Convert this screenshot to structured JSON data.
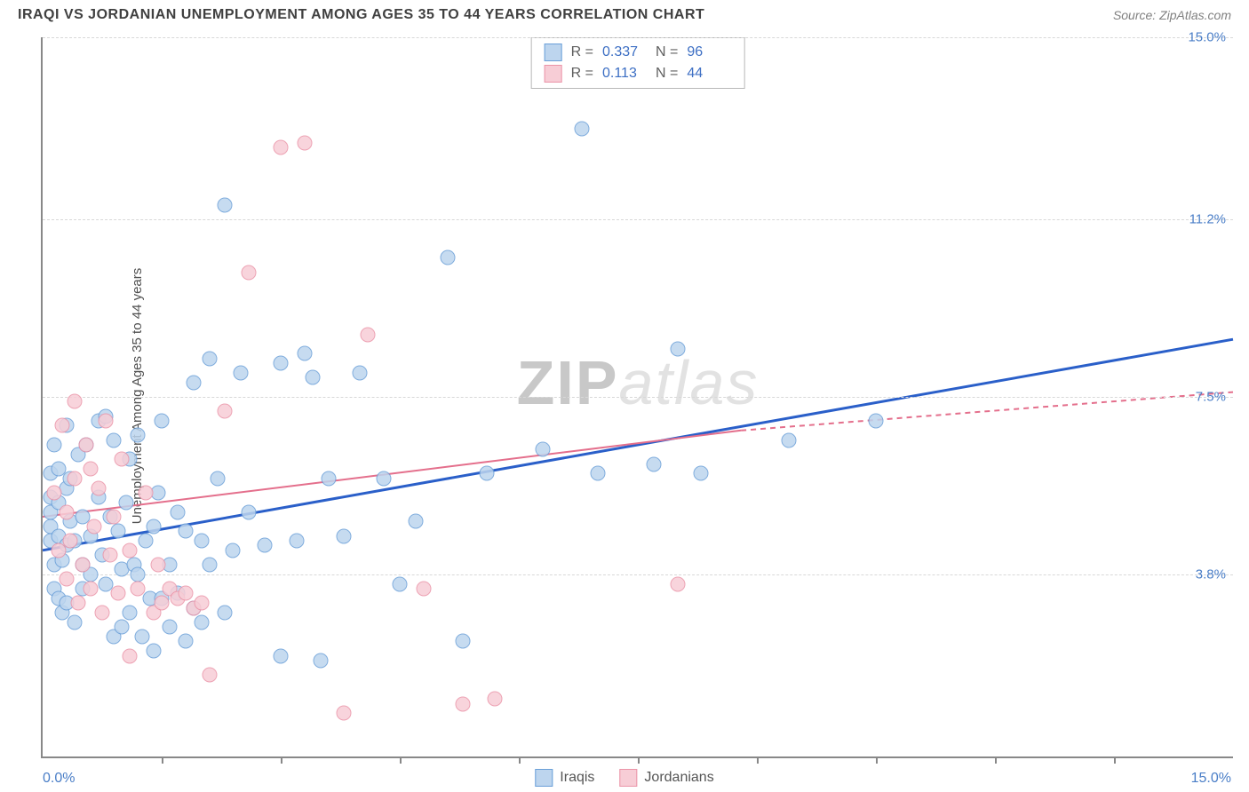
{
  "header": {
    "title": "IRAQI VS JORDANIAN UNEMPLOYMENT AMONG AGES 35 TO 44 YEARS CORRELATION CHART",
    "source": "Source: ZipAtlas.com"
  },
  "chart": {
    "type": "scatter",
    "ylabel": "Unemployment Among Ages 35 to 44 years",
    "xlim": [
      0,
      15
    ],
    "ylim": [
      0,
      15
    ],
    "xtick_positions": [
      0.1,
      0.2,
      0.3,
      0.4,
      0.5,
      0.6,
      0.7,
      0.8,
      0.9
    ],
    "x_axis_start_label": "0.0%",
    "x_axis_end_label": "15.0%",
    "y_gridlines": [
      {
        "value": 3.8,
        "label": "3.8%"
      },
      {
        "value": 7.5,
        "label": "7.5%"
      },
      {
        "value": 11.2,
        "label": "11.2%"
      },
      {
        "value": 15.0,
        "label": "15.0%"
      }
    ],
    "background_color": "#ffffff",
    "grid_color": "#d8d8d8",
    "axis_color": "#888888",
    "tick_label_color": "#4a7ec7",
    "point_radius": 8.5,
    "series": [
      {
        "name": "Iraqis",
        "fill": "#bdd5ee",
        "stroke": "#6a9fd8",
        "trend": {
          "color": "#2a5fc9",
          "width": 3,
          "x0": 0,
          "y0": 4.3,
          "x1": 15,
          "y1": 8.7
        },
        "points": [
          [
            0.1,
            5.1
          ],
          [
            0.1,
            5.4
          ],
          [
            0.1,
            4.8
          ],
          [
            0.1,
            5.9
          ],
          [
            0.1,
            4.5
          ],
          [
            0.15,
            4.0
          ],
          [
            0.15,
            3.5
          ],
          [
            0.15,
            6.5
          ],
          [
            0.2,
            5.3
          ],
          [
            0.2,
            4.6
          ],
          [
            0.2,
            3.3
          ],
          [
            0.2,
            6.0
          ],
          [
            0.25,
            4.1
          ],
          [
            0.25,
            3.0
          ],
          [
            0.3,
            5.6
          ],
          [
            0.3,
            6.9
          ],
          [
            0.3,
            4.4
          ],
          [
            0.3,
            3.2
          ],
          [
            0.35,
            4.9
          ],
          [
            0.35,
            5.8
          ],
          [
            0.4,
            2.8
          ],
          [
            0.4,
            4.5
          ],
          [
            0.45,
            6.3
          ],
          [
            0.5,
            5.0
          ],
          [
            0.5,
            4.0
          ],
          [
            0.5,
            3.5
          ],
          [
            0.55,
            6.5
          ],
          [
            0.6,
            3.8
          ],
          [
            0.6,
            4.6
          ],
          [
            0.7,
            7.0
          ],
          [
            0.7,
            5.4
          ],
          [
            0.75,
            4.2
          ],
          [
            0.8,
            7.1
          ],
          [
            0.8,
            3.6
          ],
          [
            0.85,
            5.0
          ],
          [
            0.9,
            2.5
          ],
          [
            0.9,
            6.6
          ],
          [
            0.95,
            4.7
          ],
          [
            1.0,
            3.9
          ],
          [
            1.0,
            2.7
          ],
          [
            1.05,
            5.3
          ],
          [
            1.1,
            6.2
          ],
          [
            1.1,
            3.0
          ],
          [
            1.15,
            4.0
          ],
          [
            1.2,
            3.8
          ],
          [
            1.2,
            6.7
          ],
          [
            1.25,
            2.5
          ],
          [
            1.3,
            4.5
          ],
          [
            1.35,
            3.3
          ],
          [
            1.4,
            4.8
          ],
          [
            1.4,
            2.2
          ],
          [
            1.45,
            5.5
          ],
          [
            1.5,
            3.3
          ],
          [
            1.5,
            7.0
          ],
          [
            1.6,
            4.0
          ],
          [
            1.6,
            2.7
          ],
          [
            1.7,
            5.1
          ],
          [
            1.7,
            3.4
          ],
          [
            1.8,
            4.7
          ],
          [
            1.8,
            2.4
          ],
          [
            1.9,
            3.1
          ],
          [
            1.9,
            7.8
          ],
          [
            2.0,
            4.5
          ],
          [
            2.0,
            2.8
          ],
          [
            2.1,
            8.3
          ],
          [
            2.1,
            4.0
          ],
          [
            2.2,
            5.8
          ],
          [
            2.3,
            3.0
          ],
          [
            2.3,
            11.5
          ],
          [
            2.4,
            4.3
          ],
          [
            2.5,
            8.0
          ],
          [
            2.6,
            5.1
          ],
          [
            2.8,
            4.4
          ],
          [
            3.0,
            2.1
          ],
          [
            3.0,
            8.2
          ],
          [
            3.2,
            4.5
          ],
          [
            3.3,
            8.4
          ],
          [
            3.4,
            7.9
          ],
          [
            3.5,
            2.0
          ],
          [
            3.6,
            5.8
          ],
          [
            3.8,
            4.6
          ],
          [
            4.0,
            8.0
          ],
          [
            4.3,
            5.8
          ],
          [
            4.5,
            3.6
          ],
          [
            4.7,
            4.9
          ],
          [
            5.1,
            10.4
          ],
          [
            5.3,
            2.4
          ],
          [
            5.6,
            5.9
          ],
          [
            6.3,
            6.4
          ],
          [
            6.8,
            13.1
          ],
          [
            7.0,
            5.9
          ],
          [
            7.7,
            6.1
          ],
          [
            8.0,
            8.5
          ],
          [
            8.3,
            5.9
          ],
          [
            9.4,
            6.6
          ],
          [
            10.5,
            7.0
          ]
        ]
      },
      {
        "name": "Jordanians",
        "fill": "#f7cdd6",
        "stroke": "#eb94a8",
        "trend": {
          "color": "#e46f8c",
          "width": 2,
          "x0": 0,
          "y0": 5.0,
          "x1": 8.8,
          "y1": 6.8,
          "dash_x1": 15,
          "dash_y1": 7.6
        },
        "points": [
          [
            0.15,
            5.5
          ],
          [
            0.2,
            4.3
          ],
          [
            0.25,
            6.9
          ],
          [
            0.3,
            5.1
          ],
          [
            0.3,
            3.7
          ],
          [
            0.35,
            4.5
          ],
          [
            0.4,
            7.4
          ],
          [
            0.4,
            5.8
          ],
          [
            0.45,
            3.2
          ],
          [
            0.5,
            4.0
          ],
          [
            0.55,
            6.5
          ],
          [
            0.6,
            3.5
          ],
          [
            0.6,
            6.0
          ],
          [
            0.65,
            4.8
          ],
          [
            0.7,
            5.6
          ],
          [
            0.75,
            3.0
          ],
          [
            0.8,
            7.0
          ],
          [
            0.85,
            4.2
          ],
          [
            0.9,
            5.0
          ],
          [
            0.95,
            3.4
          ],
          [
            1.0,
            6.2
          ],
          [
            1.1,
            2.1
          ],
          [
            1.1,
            4.3
          ],
          [
            1.2,
            3.5
          ],
          [
            1.3,
            5.5
          ],
          [
            1.4,
            3.0
          ],
          [
            1.45,
            4.0
          ],
          [
            1.5,
            3.2
          ],
          [
            1.6,
            3.5
          ],
          [
            1.7,
            3.3
          ],
          [
            1.8,
            3.4
          ],
          [
            1.9,
            3.1
          ],
          [
            2.0,
            3.2
          ],
          [
            2.1,
            1.7
          ],
          [
            2.3,
            7.2
          ],
          [
            2.6,
            10.1
          ],
          [
            3.0,
            12.7
          ],
          [
            3.3,
            12.8
          ],
          [
            3.8,
            0.9
          ],
          [
            4.1,
            8.8
          ],
          [
            4.8,
            3.5
          ],
          [
            5.3,
            1.1
          ],
          [
            5.7,
            1.2
          ],
          [
            8.0,
            3.6
          ]
        ]
      }
    ],
    "stats_box": {
      "rows": [
        {
          "swatch_fill": "#bdd5ee",
          "swatch_stroke": "#6a9fd8",
          "r_label": "R =",
          "r_val": "0.337",
          "n_label": "N =",
          "n_val": "96"
        },
        {
          "swatch_fill": "#f7cdd6",
          "swatch_stroke": "#eb94a8",
          "r_label": "R =",
          "r_val": "0.113",
          "n_label": "N =",
          "n_val": "44"
        }
      ]
    },
    "legend": [
      {
        "swatch_fill": "#bdd5ee",
        "swatch_stroke": "#6a9fd8",
        "label": "Iraqis"
      },
      {
        "swatch_fill": "#f7cdd6",
        "swatch_stroke": "#eb94a8",
        "label": "Jordanians"
      }
    ],
    "watermark": {
      "part1": "ZIP",
      "part2": "atlas"
    }
  }
}
